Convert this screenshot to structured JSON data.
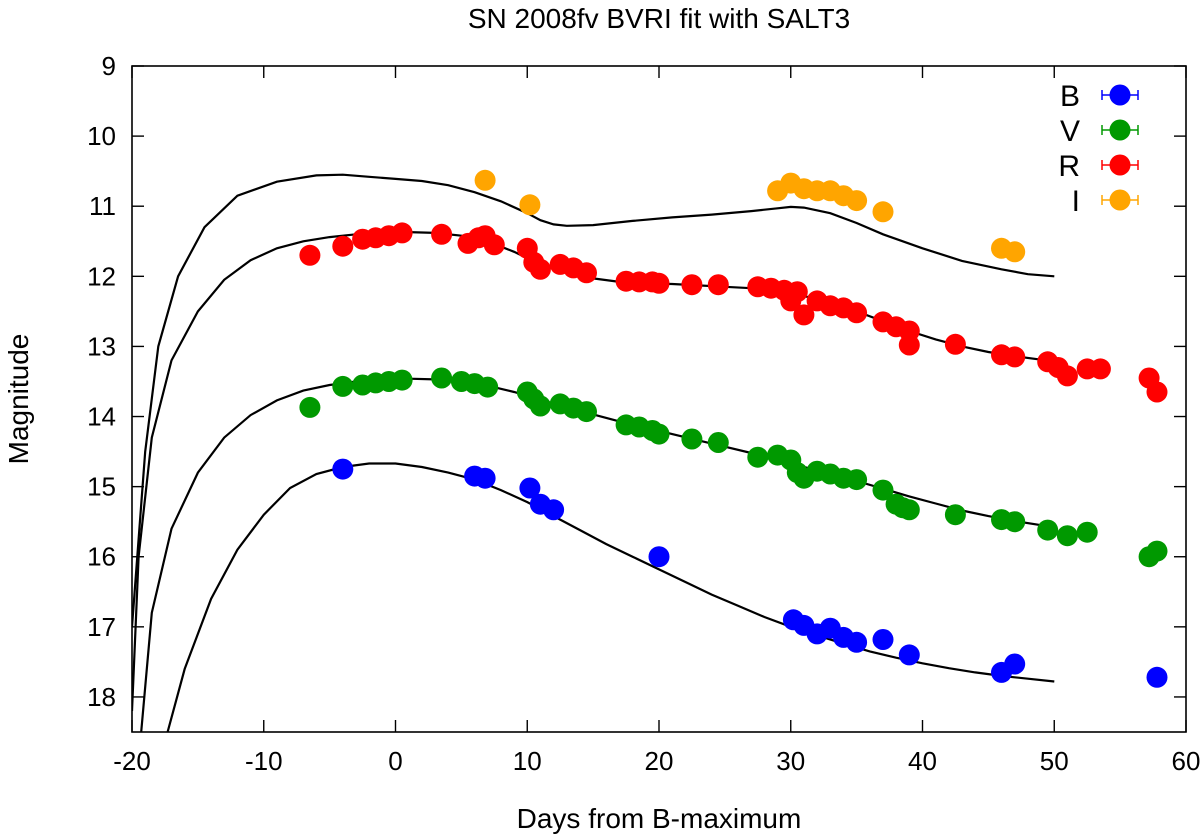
{
  "chart_data": {
    "type": "scatter",
    "title": "SN 2008fv BVRI fit with SALT3",
    "xlabel": "Days from B-maximum",
    "ylabel": "Magnitude",
    "xlim": [
      -20,
      60
    ],
    "ylim": [
      18.5,
      9
    ],
    "y_inverted": true,
    "xticks": [
      -20,
      -10,
      0,
      10,
      20,
      30,
      40,
      50,
      60
    ],
    "yticks": [
      9,
      10,
      11,
      12,
      13,
      14,
      15,
      16,
      17,
      18
    ],
    "legend_position": "top-right",
    "series": [
      {
        "name": "B",
        "color": "#0000ff",
        "points": [
          [
            -4,
            14.75
          ],
          [
            6,
            14.85
          ],
          [
            6.8,
            14.88
          ],
          [
            10.2,
            15.02
          ],
          [
            11,
            15.25
          ],
          [
            12,
            15.33
          ],
          [
            20,
            16.0
          ],
          [
            30.2,
            16.9
          ],
          [
            31,
            16.98
          ],
          [
            32,
            17.1
          ],
          [
            33,
            17.02
          ],
          [
            34,
            17.15
          ],
          [
            35,
            17.22
          ],
          [
            37,
            17.18
          ],
          [
            39,
            17.4
          ],
          [
            46,
            17.65
          ],
          [
            47,
            17.53
          ],
          [
            57.8,
            17.72
          ]
        ],
        "model": [
          [
            -17.3,
            18.5
          ],
          [
            -16,
            17.6
          ],
          [
            -14,
            16.6
          ],
          [
            -12,
            15.9
          ],
          [
            -10,
            15.4
          ],
          [
            -8,
            15.02
          ],
          [
            -6,
            14.82
          ],
          [
            -4,
            14.72
          ],
          [
            -2,
            14.67
          ],
          [
            0,
            14.67
          ],
          [
            2,
            14.72
          ],
          [
            4,
            14.8
          ],
          [
            6,
            14.9
          ],
          [
            8,
            15.05
          ],
          [
            10,
            15.22
          ],
          [
            12,
            15.42
          ],
          [
            14,
            15.62
          ],
          [
            16,
            15.82
          ],
          [
            18,
            16.0
          ],
          [
            20,
            16.18
          ],
          [
            22,
            16.36
          ],
          [
            24,
            16.54
          ],
          [
            26,
            16.7
          ],
          [
            28,
            16.86
          ],
          [
            30,
            17.0
          ],
          [
            32,
            17.12
          ],
          [
            34,
            17.24
          ],
          [
            36,
            17.35
          ],
          [
            38,
            17.44
          ],
          [
            40,
            17.52
          ],
          [
            42,
            17.59
          ],
          [
            44,
            17.65
          ],
          [
            46,
            17.7
          ],
          [
            48,
            17.74
          ],
          [
            50,
            17.78
          ]
        ]
      },
      {
        "name": "V",
        "color": "#009900",
        "points": [
          [
            -6.5,
            13.87
          ],
          [
            -4,
            13.57
          ],
          [
            -2.5,
            13.55
          ],
          [
            -1.5,
            13.52
          ],
          [
            -0.5,
            13.5
          ],
          [
            0.5,
            13.48
          ],
          [
            3.5,
            13.45
          ],
          [
            5,
            13.5
          ],
          [
            6,
            13.53
          ],
          [
            7,
            13.58
          ],
          [
            10,
            13.65
          ],
          [
            10.5,
            13.75
          ],
          [
            11,
            13.85
          ],
          [
            12.5,
            13.82
          ],
          [
            13.5,
            13.88
          ],
          [
            14.5,
            13.93
          ],
          [
            17.5,
            14.12
          ],
          [
            18.5,
            14.15
          ],
          [
            19.5,
            14.2
          ],
          [
            20,
            14.25
          ],
          [
            22.5,
            14.32
          ],
          [
            24.5,
            14.37
          ],
          [
            27.5,
            14.58
          ],
          [
            29,
            14.55
          ],
          [
            30,
            14.62
          ],
          [
            30.5,
            14.8
          ],
          [
            31,
            14.88
          ],
          [
            32,
            14.78
          ],
          [
            33,
            14.82
          ],
          [
            34,
            14.88
          ],
          [
            35,
            14.9
          ],
          [
            37,
            15.05
          ],
          [
            38,
            15.25
          ],
          [
            38.5,
            15.3
          ],
          [
            39,
            15.33
          ],
          [
            42.5,
            15.4
          ],
          [
            46,
            15.47
          ],
          [
            47,
            15.5
          ],
          [
            49.5,
            15.62
          ],
          [
            51,
            15.7
          ],
          [
            52.5,
            15.65
          ],
          [
            57.2,
            16.0
          ],
          [
            57.8,
            15.92
          ]
        ],
        "model": [
          [
            -19.3,
            18.5
          ],
          [
            -18.5,
            16.8
          ],
          [
            -17,
            15.6
          ],
          [
            -15,
            14.8
          ],
          [
            -13,
            14.3
          ],
          [
            -11,
            13.98
          ],
          [
            -9,
            13.77
          ],
          [
            -7,
            13.63
          ],
          [
            -5,
            13.55
          ],
          [
            -3,
            13.5
          ],
          [
            -1,
            13.47
          ],
          [
            1,
            13.46
          ],
          [
            3,
            13.47
          ],
          [
            5,
            13.5
          ],
          [
            7,
            13.56
          ],
          [
            9,
            13.65
          ],
          [
            11,
            13.76
          ],
          [
            13,
            13.87
          ],
          [
            15,
            13.97
          ],
          [
            17,
            14.07
          ],
          [
            19,
            14.16
          ],
          [
            21,
            14.25
          ],
          [
            23,
            14.34
          ],
          [
            25,
            14.43
          ],
          [
            27,
            14.52
          ],
          [
            29,
            14.62
          ],
          [
            31,
            14.72
          ],
          [
            33,
            14.82
          ],
          [
            35,
            14.92
          ],
          [
            37,
            15.03
          ],
          [
            39,
            15.14
          ],
          [
            41,
            15.24
          ],
          [
            43,
            15.34
          ],
          [
            45,
            15.42
          ],
          [
            47,
            15.49
          ],
          [
            49,
            15.55
          ],
          [
            50,
            15.58
          ]
        ]
      },
      {
        "name": "R",
        "color": "#ff0000",
        "points": [
          [
            -6.5,
            11.7
          ],
          [
            -4,
            11.57
          ],
          [
            -2.5,
            11.47
          ],
          [
            -1.5,
            11.45
          ],
          [
            -0.5,
            11.42
          ],
          [
            0.5,
            11.38
          ],
          [
            3.5,
            11.4
          ],
          [
            5.5,
            11.53
          ],
          [
            6.3,
            11.45
          ],
          [
            6.8,
            11.42
          ],
          [
            7.5,
            11.55
          ],
          [
            10,
            11.6
          ],
          [
            10.5,
            11.8
          ],
          [
            11,
            11.9
          ],
          [
            12.5,
            11.83
          ],
          [
            13.5,
            11.88
          ],
          [
            14.5,
            11.95
          ],
          [
            17.5,
            12.07
          ],
          [
            18.5,
            12.08
          ],
          [
            19.5,
            12.08
          ],
          [
            20,
            12.1
          ],
          [
            22.5,
            12.12
          ],
          [
            24.5,
            12.12
          ],
          [
            27.5,
            12.15
          ],
          [
            28.5,
            12.17
          ],
          [
            29.5,
            12.2
          ],
          [
            30,
            12.35
          ],
          [
            30.5,
            12.22
          ],
          [
            31,
            12.55
          ],
          [
            32,
            12.35
          ],
          [
            33,
            12.42
          ],
          [
            34,
            12.45
          ],
          [
            35,
            12.52
          ],
          [
            37,
            12.65
          ],
          [
            38,
            12.72
          ],
          [
            39,
            12.78
          ],
          [
            39,
            12.98
          ],
          [
            42.5,
            12.97
          ],
          [
            46,
            13.12
          ],
          [
            47,
            13.15
          ],
          [
            49.5,
            13.22
          ],
          [
            50.3,
            13.3
          ],
          [
            51,
            13.42
          ],
          [
            52.5,
            13.32
          ],
          [
            53.5,
            13.32
          ],
          [
            57.2,
            13.45
          ],
          [
            57.8,
            13.65
          ]
        ],
        "model": [
          [
            -20,
            18.2
          ],
          [
            -19.5,
            16.0
          ],
          [
            -18.5,
            14.3
          ],
          [
            -17,
            13.2
          ],
          [
            -15,
            12.5
          ],
          [
            -13,
            12.05
          ],
          [
            -11,
            11.77
          ],
          [
            -9,
            11.6
          ],
          [
            -7,
            11.5
          ],
          [
            -5,
            11.44
          ],
          [
            -3,
            11.4
          ],
          [
            -1,
            11.38
          ],
          [
            1,
            11.37
          ],
          [
            3,
            11.38
          ],
          [
            5,
            11.42
          ],
          [
            7,
            11.5
          ],
          [
            9,
            11.65
          ],
          [
            11,
            11.83
          ],
          [
            13,
            11.95
          ],
          [
            15,
            12.03
          ],
          [
            17,
            12.08
          ],
          [
            19,
            12.1
          ],
          [
            21,
            12.11
          ],
          [
            23,
            12.13
          ],
          [
            25,
            12.15
          ],
          [
            27,
            12.17
          ],
          [
            29,
            12.2
          ],
          [
            31,
            12.28
          ],
          [
            33,
            12.38
          ],
          [
            35,
            12.5
          ],
          [
            37,
            12.64
          ],
          [
            39,
            12.78
          ],
          [
            41,
            12.9
          ],
          [
            43,
            13.0
          ],
          [
            45,
            13.08
          ],
          [
            47,
            13.14
          ],
          [
            49,
            13.19
          ],
          [
            50,
            13.21
          ]
        ]
      },
      {
        "name": "I",
        "color": "#ffa500",
        "points": [
          [
            6.8,
            10.63
          ],
          [
            10.2,
            10.98
          ],
          [
            29,
            10.78
          ],
          [
            30,
            10.67
          ],
          [
            31,
            10.75
          ],
          [
            32,
            10.78
          ],
          [
            33,
            10.78
          ],
          [
            34,
            10.85
          ],
          [
            35,
            10.92
          ],
          [
            37,
            11.08
          ],
          [
            46,
            11.6
          ],
          [
            47,
            11.65
          ]
        ],
        "model": [
          [
            -20,
            17.0
          ],
          [
            -19,
            14.5
          ],
          [
            -18,
            13.0
          ],
          [
            -16.5,
            12.0
          ],
          [
            -14.5,
            11.3
          ],
          [
            -12,
            10.85
          ],
          [
            -9,
            10.65
          ],
          [
            -6,
            10.56
          ],
          [
            -4,
            10.55
          ],
          [
            -2,
            10.58
          ],
          [
            0,
            10.61
          ],
          [
            2,
            10.64
          ],
          [
            4,
            10.7
          ],
          [
            6,
            10.8
          ],
          [
            8,
            10.93
          ],
          [
            10,
            11.1
          ],
          [
            11,
            11.2
          ],
          [
            12,
            11.26
          ],
          [
            13,
            11.28
          ],
          [
            15,
            11.27
          ],
          [
            18,
            11.21
          ],
          [
            21,
            11.16
          ],
          [
            24,
            11.12
          ],
          [
            27,
            11.07
          ],
          [
            29,
            11.03
          ],
          [
            30,
            11.01
          ],
          [
            31,
            11.02
          ],
          [
            33,
            11.1
          ],
          [
            35,
            11.24
          ],
          [
            37,
            11.4
          ],
          [
            40,
            11.6
          ],
          [
            43,
            11.78
          ],
          [
            46,
            11.9
          ],
          [
            48,
            11.97
          ],
          [
            50,
            12.0
          ]
        ]
      }
    ]
  }
}
